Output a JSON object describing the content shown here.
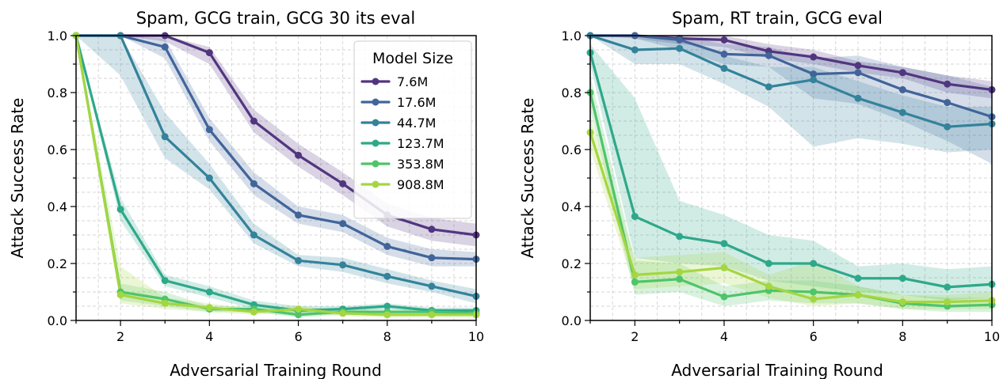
{
  "colors": {
    "7.6M": "#52357f",
    "17.6M": "#41649a",
    "44.7M": "#34829b",
    "123.7M": "#2ea88a",
    "353.8M": "#4fc46a",
    "908.8M": "#a4d641"
  },
  "chart_data": [
    {
      "type": "line",
      "title": "Spam, GCG train, GCG 30 its eval",
      "xlabel": "Adversarial Training Round",
      "ylabel": "Attack Success Rate",
      "xlim": [
        1,
        10
      ],
      "ylim": [
        0,
        1
      ],
      "xticks": [
        "2",
        "4",
        "6",
        "8",
        "10"
      ],
      "yticks": [
        "0.0",
        "0.2",
        "0.4",
        "0.6",
        "0.8",
        "1.0"
      ],
      "grid": true,
      "legend": {
        "title": "Model Size",
        "position": "top-right"
      },
      "x": [
        1,
        2,
        3,
        4,
        5,
        6,
        7,
        8,
        9,
        10
      ],
      "series": [
        {
          "name": "7.6M",
          "values": [
            1.0,
            1.0,
            1.0,
            0.94,
            0.7,
            0.58,
            0.48,
            0.37,
            0.32,
            0.3
          ],
          "lower": [
            1.0,
            1.0,
            0.98,
            0.9,
            0.66,
            0.54,
            0.44,
            0.33,
            0.28,
            0.26
          ],
          "upper": [
            1.0,
            1.0,
            1.0,
            0.96,
            0.74,
            0.62,
            0.52,
            0.41,
            0.36,
            0.34
          ]
        },
        {
          "name": "17.6M",
          "values": [
            1.0,
            1.0,
            0.96,
            0.67,
            0.48,
            0.37,
            0.34,
            0.26,
            0.22,
            0.215
          ],
          "lower": [
            1.0,
            1.0,
            0.92,
            0.63,
            0.44,
            0.34,
            0.31,
            0.23,
            0.19,
            0.19
          ],
          "upper": [
            1.0,
            1.0,
            0.99,
            0.71,
            0.52,
            0.4,
            0.37,
            0.29,
            0.25,
            0.24
          ]
        },
        {
          "name": "44.7M",
          "values": [
            1.0,
            1.0,
            0.645,
            0.5,
            0.3,
            0.21,
            0.195,
            0.155,
            0.12,
            0.085
          ],
          "lower": [
            1.0,
            0.86,
            0.57,
            0.46,
            0.27,
            0.19,
            0.17,
            0.13,
            0.1,
            0.06
          ],
          "upper": [
            1.0,
            1.0,
            0.73,
            0.55,
            0.34,
            0.23,
            0.22,
            0.18,
            0.14,
            0.11
          ]
        },
        {
          "name": "123.7M",
          "values": [
            1.0,
            0.39,
            0.14,
            0.1,
            0.055,
            0.035,
            0.04,
            0.05,
            0.035,
            0.035
          ],
          "lower": [
            1.0,
            0.35,
            0.12,
            0.08,
            0.04,
            0.02,
            0.03,
            0.04,
            0.025,
            0.025
          ],
          "upper": [
            1.0,
            0.43,
            0.16,
            0.12,
            0.07,
            0.05,
            0.05,
            0.06,
            0.045,
            0.045
          ]
        },
        {
          "name": "353.8M",
          "values": [
            1.0,
            0.1,
            0.075,
            0.04,
            0.04,
            0.02,
            0.03,
            0.03,
            0.03,
            0.025
          ],
          "lower": [
            1.0,
            0.07,
            0.05,
            0.03,
            0.03,
            0.01,
            0.02,
            0.02,
            0.02,
            0.015
          ],
          "upper": [
            1.0,
            0.13,
            0.1,
            0.05,
            0.05,
            0.03,
            0.04,
            0.04,
            0.04,
            0.035
          ]
        },
        {
          "name": "908.8M",
          "values": [
            1.0,
            0.09,
            0.06,
            0.045,
            0.03,
            0.04,
            0.025,
            0.02,
            0.02,
            0.02
          ],
          "lower": [
            1.0,
            0.06,
            0.04,
            0.03,
            0.02,
            0.03,
            0.015,
            0.01,
            0.01,
            0.01
          ],
          "upper": [
            1.0,
            0.19,
            0.08,
            0.06,
            0.04,
            0.05,
            0.035,
            0.03,
            0.03,
            0.03
          ]
        }
      ]
    },
    {
      "type": "line",
      "title": "Spam, RT train, GCG eval",
      "xlabel": "Adversarial Training Round",
      "ylabel": "Attack Success Rate",
      "xlim": [
        1,
        10
      ],
      "ylim": [
        0,
        1
      ],
      "xticks": [
        "2",
        "4",
        "6",
        "8",
        "10"
      ],
      "yticks": [
        "0.0",
        "0.2",
        "0.4",
        "0.6",
        "0.8",
        "1.0"
      ],
      "grid": true,
      "x": [
        1,
        2,
        3,
        4,
        5,
        6,
        7,
        8,
        9,
        10
      ],
      "series": [
        {
          "name": "7.6M",
          "values": [
            1.0,
            1.0,
            0.99,
            0.985,
            0.945,
            0.925,
            0.895,
            0.87,
            0.83,
            0.81
          ],
          "lower": [
            1.0,
            0.99,
            0.97,
            0.96,
            0.92,
            0.9,
            0.87,
            0.85,
            0.8,
            0.78
          ],
          "upper": [
            1.0,
            1.0,
            1.0,
            1.0,
            0.97,
            0.95,
            0.91,
            0.89,
            0.86,
            0.84
          ]
        },
        {
          "name": "17.6M",
          "values": [
            1.0,
            1.0,
            0.985,
            0.935,
            0.93,
            0.865,
            0.87,
            0.81,
            0.765,
            0.715
          ],
          "lower": [
            1.0,
            0.99,
            0.95,
            0.9,
            0.89,
            0.78,
            0.76,
            0.7,
            0.63,
            0.55
          ],
          "upper": [
            1.0,
            1.0,
            1.0,
            0.97,
            0.96,
            0.92,
            0.93,
            0.89,
            0.86,
            0.82
          ]
        },
        {
          "name": "44.7M",
          "values": [
            1.0,
            0.95,
            0.955,
            0.885,
            0.82,
            0.845,
            0.78,
            0.73,
            0.68,
            0.69
          ],
          "lower": [
            1.0,
            0.9,
            0.9,
            0.83,
            0.75,
            0.61,
            0.64,
            0.62,
            0.59,
            0.6
          ],
          "upper": [
            1.0,
            0.99,
            0.99,
            0.93,
            0.89,
            0.89,
            0.84,
            0.79,
            0.75,
            0.75
          ]
        },
        {
          "name": "123.7M",
          "values": [
            0.94,
            0.365,
            0.295,
            0.27,
            0.2,
            0.2,
            0.148,
            0.148,
            0.117,
            0.127
          ],
          "lower": [
            0.9,
            0.22,
            0.2,
            0.19,
            0.14,
            0.12,
            0.1,
            0.09,
            0.07,
            0.08
          ],
          "upper": [
            0.97,
            0.78,
            0.42,
            0.37,
            0.3,
            0.28,
            0.19,
            0.2,
            0.18,
            0.19
          ]
        },
        {
          "name": "353.8M",
          "values": [
            0.8,
            0.135,
            0.145,
            0.083,
            0.105,
            0.1,
            0.09,
            0.06,
            0.05,
            0.055
          ],
          "lower": [
            0.74,
            0.09,
            0.1,
            0.05,
            0.07,
            0.06,
            0.06,
            0.04,
            0.03,
            0.03
          ],
          "upper": [
            0.86,
            0.21,
            0.2,
            0.12,
            0.14,
            0.14,
            0.12,
            0.09,
            0.08,
            0.08
          ]
        },
        {
          "name": "908.8M",
          "values": [
            0.66,
            0.16,
            0.17,
            0.185,
            0.12,
            0.075,
            0.09,
            0.065,
            0.065,
            0.07
          ],
          "lower": [
            0.6,
            0.11,
            0.12,
            0.13,
            0.08,
            0.05,
            0.06,
            0.04,
            0.04,
            0.04
          ],
          "upper": [
            0.72,
            0.22,
            0.23,
            0.24,
            0.16,
            0.21,
            0.12,
            0.09,
            0.09,
            0.1
          ]
        }
      ]
    }
  ]
}
